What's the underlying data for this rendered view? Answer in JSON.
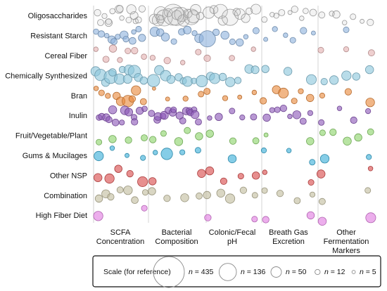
{
  "chart_data": {
    "type": "scatter",
    "rows": [
      "Oligosaccharides",
      "Resistant Starch",
      "Cereal Fiber",
      "Chemically  Synthesized",
      "Bran",
      "Inulin",
      "Fruit/Vegetable/Plant",
      "Gums & Mucilages",
      "Other NSP",
      "Combination",
      "High Fiber Diet"
    ],
    "columns": [
      {
        "lines": [
          "SCFA",
          "Concentration"
        ]
      },
      {
        "lines": [
          "Bacterial",
          "Composition"
        ]
      },
      {
        "lines": [
          "Colonic/Fecal",
          "pH"
        ]
      },
      {
        "lines": [
          "Breath Gas",
          "Excretion"
        ]
      },
      {
        "lines": [
          "Other",
          "Fermentation",
          "Markers"
        ]
      }
    ],
    "row_colors": [
      "#bdbdbd",
      "#8fb3dd",
      "#e3b1b1",
      "#8cc6dc",
      "#e8893c",
      "#8c58b8",
      "#8cd36b",
      "#3aaed8",
      "#d84a4a",
      "#c2bd9e",
      "#e07de0"
    ],
    "legend": {
      "title": "Scale (for reference)",
      "items": [
        {
          "label": "n = 435",
          "n": 435
        },
        {
          "label": "n = 136",
          "n": 136
        },
        {
          "label": "n = 50",
          "n": 50
        },
        {
          "label": "n = 12",
          "n": 12
        },
        {
          "label": "n = 5",
          "n": 5
        }
      ]
    },
    "size_encoding": "bubble area proportional to n (number of subjects per study)",
    "cells": [
      [
        [
          20,
          18,
          12,
          16,
          25,
          14,
          30,
          22,
          10,
          15,
          40,
          28,
          12,
          18,
          20
        ],
        [
          45,
          60,
          25,
          80,
          120,
          30,
          200,
          150,
          40,
          90,
          60,
          35,
          110,
          70,
          50,
          25
        ],
        [
          60,
          30,
          90,
          40,
          120,
          25,
          50,
          35,
          20,
          45
        ],
        [
          15,
          10,
          12,
          18,
          8,
          20,
          10,
          14,
          22
        ],
        [
          18,
          12,
          25,
          10,
          15,
          8,
          20
        ]
      ],
      [
        [
          14,
          20,
          10,
          25,
          18,
          12,
          30,
          16,
          22,
          10,
          15,
          24
        ],
        [
          40,
          25,
          30,
          15,
          20,
          28,
          12,
          35
        ],
        [
          120,
          20,
          30,
          15,
          25,
          10,
          18
        ],
        [
          8,
          12,
          10,
          15,
          20,
          8
        ],
        [
          15
        ]
      ],
      [
        [
          10,
          18,
          25,
          12,
          15,
          20,
          14
        ],
        [
          12,
          20,
          10,
          15
        ],
        [
          20,
          14,
          10
        ],
        [],
        [
          15,
          12,
          18
        ]
      ],
      [
        [
          40,
          60,
          30,
          80,
          25,
          50,
          20,
          35,
          45,
          70,
          30,
          25
        ],
        [
          70,
          40,
          50,
          30,
          25,
          20,
          45,
          15,
          60
        ],
        [
          30,
          50,
          25,
          40,
          20,
          35,
          28
        ],
        [
          25,
          30,
          45
        ],
        [
          20,
          35,
          40,
          25,
          30
        ]
      ],
      [
        [
          10,
          15,
          12,
          25,
          35,
          60,
          20,
          40,
          18
        ],
        [
          5,
          8,
          12,
          15
        ],
        [
          18,
          12,
          8,
          10
        ],
        [
          20,
          30,
          45,
          15,
          12,
          25
        ],
        [
          12,
          20,
          35
        ]
      ],
      [
        [
          15,
          20,
          25,
          18,
          30,
          22,
          12,
          35,
          28,
          16,
          20,
          24,
          14
        ],
        [
          18,
          22,
          28,
          15,
          30,
          20,
          25,
          16,
          24,
          18,
          26,
          22,
          20,
          15,
          30,
          18
        ],
        [
          10,
          25,
          15,
          12,
          18
        ],
        [
          25,
          12,
          15,
          20,
          10,
          30,
          18,
          12
        ],
        [
          15,
          10,
          20,
          12
        ]
      ],
      [
        [
          15,
          25,
          20,
          18
        ],
        [
          20,
          15,
          30,
          18,
          25
        ],
        [
          25,
          20,
          18
        ],
        [
          8,
          25
        ],
        [
          15,
          20,
          30,
          25,
          18
        ]
      ],
      [
        [
          40,
          10,
          8,
          12
        ],
        [
          10,
          60,
          12,
          15
        ],
        [
          30
        ],
        [
          12,
          10,
          15
        ],
        [
          35,
          12
        ]
      ],
      [
        [
          30,
          40,
          25,
          20,
          45
        ],
        [
          25,
          30
        ],
        [
          30,
          20,
          15,
          25
        ],
        [
          10,
          15
        ],
        [
          30,
          10
        ]
      ],
      [
        [
          25,
          30,
          20,
          18,
          35,
          22,
          15
        ],
        [
          25,
          20,
          30,
          18
        ],
        [
          25,
          30,
          40,
          20,
          15
        ],
        [
          15,
          20,
          18,
          12
        ],
        [
          18,
          15
        ]
      ],
      [
        [
          40,
          15
        ],
        [],
        [
          20,
          15
        ],
        [
          20,
          25
        ],
        [
          30,
          45
        ]
      ]
    ]
  }
}
